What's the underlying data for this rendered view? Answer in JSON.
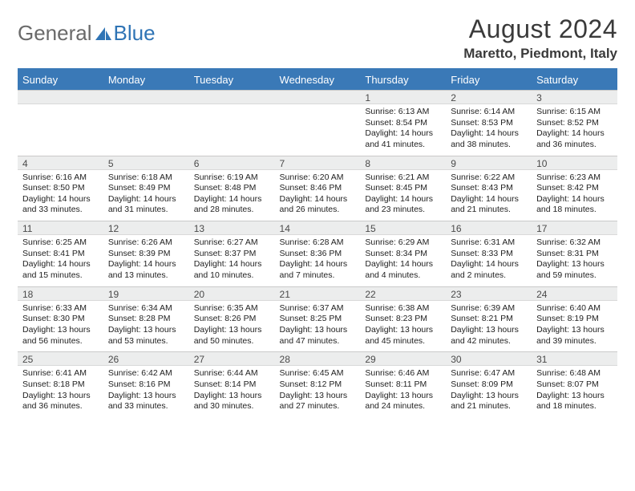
{
  "brand": {
    "part1": "General",
    "part2": "Blue"
  },
  "header": {
    "title": "August 2024",
    "location": "Maretto, Piedmont, Italy"
  },
  "colors": {
    "header_bg": "#3a79b7",
    "header_text": "#ffffff",
    "daynum_bg": "#eceded",
    "border": "#c9c9c9",
    "text": "#222222",
    "brand_gray": "#6a6a6a",
    "brand_blue": "#2f74b5"
  },
  "daysOfWeek": [
    "Sunday",
    "Monday",
    "Tuesday",
    "Wednesday",
    "Thursday",
    "Friday",
    "Saturday"
  ],
  "weeks": [
    [
      {
        "num": "",
        "sunrise": "",
        "sunset": "",
        "daylight": ""
      },
      {
        "num": "",
        "sunrise": "",
        "sunset": "",
        "daylight": ""
      },
      {
        "num": "",
        "sunrise": "",
        "sunset": "",
        "daylight": ""
      },
      {
        "num": "",
        "sunrise": "",
        "sunset": "",
        "daylight": ""
      },
      {
        "num": "1",
        "sunrise": "Sunrise: 6:13 AM",
        "sunset": "Sunset: 8:54 PM",
        "daylight": "Daylight: 14 hours and 41 minutes."
      },
      {
        "num": "2",
        "sunrise": "Sunrise: 6:14 AM",
        "sunset": "Sunset: 8:53 PM",
        "daylight": "Daylight: 14 hours and 38 minutes."
      },
      {
        "num": "3",
        "sunrise": "Sunrise: 6:15 AM",
        "sunset": "Sunset: 8:52 PM",
        "daylight": "Daylight: 14 hours and 36 minutes."
      }
    ],
    [
      {
        "num": "4",
        "sunrise": "Sunrise: 6:16 AM",
        "sunset": "Sunset: 8:50 PM",
        "daylight": "Daylight: 14 hours and 33 minutes."
      },
      {
        "num": "5",
        "sunrise": "Sunrise: 6:18 AM",
        "sunset": "Sunset: 8:49 PM",
        "daylight": "Daylight: 14 hours and 31 minutes."
      },
      {
        "num": "6",
        "sunrise": "Sunrise: 6:19 AM",
        "sunset": "Sunset: 8:48 PM",
        "daylight": "Daylight: 14 hours and 28 minutes."
      },
      {
        "num": "7",
        "sunrise": "Sunrise: 6:20 AM",
        "sunset": "Sunset: 8:46 PM",
        "daylight": "Daylight: 14 hours and 26 minutes."
      },
      {
        "num": "8",
        "sunrise": "Sunrise: 6:21 AM",
        "sunset": "Sunset: 8:45 PM",
        "daylight": "Daylight: 14 hours and 23 minutes."
      },
      {
        "num": "9",
        "sunrise": "Sunrise: 6:22 AM",
        "sunset": "Sunset: 8:43 PM",
        "daylight": "Daylight: 14 hours and 21 minutes."
      },
      {
        "num": "10",
        "sunrise": "Sunrise: 6:23 AM",
        "sunset": "Sunset: 8:42 PM",
        "daylight": "Daylight: 14 hours and 18 minutes."
      }
    ],
    [
      {
        "num": "11",
        "sunrise": "Sunrise: 6:25 AM",
        "sunset": "Sunset: 8:41 PM",
        "daylight": "Daylight: 14 hours and 15 minutes."
      },
      {
        "num": "12",
        "sunrise": "Sunrise: 6:26 AM",
        "sunset": "Sunset: 8:39 PM",
        "daylight": "Daylight: 14 hours and 13 minutes."
      },
      {
        "num": "13",
        "sunrise": "Sunrise: 6:27 AM",
        "sunset": "Sunset: 8:37 PM",
        "daylight": "Daylight: 14 hours and 10 minutes."
      },
      {
        "num": "14",
        "sunrise": "Sunrise: 6:28 AM",
        "sunset": "Sunset: 8:36 PM",
        "daylight": "Daylight: 14 hours and 7 minutes."
      },
      {
        "num": "15",
        "sunrise": "Sunrise: 6:29 AM",
        "sunset": "Sunset: 8:34 PM",
        "daylight": "Daylight: 14 hours and 4 minutes."
      },
      {
        "num": "16",
        "sunrise": "Sunrise: 6:31 AM",
        "sunset": "Sunset: 8:33 PM",
        "daylight": "Daylight: 14 hours and 2 minutes."
      },
      {
        "num": "17",
        "sunrise": "Sunrise: 6:32 AM",
        "sunset": "Sunset: 8:31 PM",
        "daylight": "Daylight: 13 hours and 59 minutes."
      }
    ],
    [
      {
        "num": "18",
        "sunrise": "Sunrise: 6:33 AM",
        "sunset": "Sunset: 8:30 PM",
        "daylight": "Daylight: 13 hours and 56 minutes."
      },
      {
        "num": "19",
        "sunrise": "Sunrise: 6:34 AM",
        "sunset": "Sunset: 8:28 PM",
        "daylight": "Daylight: 13 hours and 53 minutes."
      },
      {
        "num": "20",
        "sunrise": "Sunrise: 6:35 AM",
        "sunset": "Sunset: 8:26 PM",
        "daylight": "Daylight: 13 hours and 50 minutes."
      },
      {
        "num": "21",
        "sunrise": "Sunrise: 6:37 AM",
        "sunset": "Sunset: 8:25 PM",
        "daylight": "Daylight: 13 hours and 47 minutes."
      },
      {
        "num": "22",
        "sunrise": "Sunrise: 6:38 AM",
        "sunset": "Sunset: 8:23 PM",
        "daylight": "Daylight: 13 hours and 45 minutes."
      },
      {
        "num": "23",
        "sunrise": "Sunrise: 6:39 AM",
        "sunset": "Sunset: 8:21 PM",
        "daylight": "Daylight: 13 hours and 42 minutes."
      },
      {
        "num": "24",
        "sunrise": "Sunrise: 6:40 AM",
        "sunset": "Sunset: 8:19 PM",
        "daylight": "Daylight: 13 hours and 39 minutes."
      }
    ],
    [
      {
        "num": "25",
        "sunrise": "Sunrise: 6:41 AM",
        "sunset": "Sunset: 8:18 PM",
        "daylight": "Daylight: 13 hours and 36 minutes."
      },
      {
        "num": "26",
        "sunrise": "Sunrise: 6:42 AM",
        "sunset": "Sunset: 8:16 PM",
        "daylight": "Daylight: 13 hours and 33 minutes."
      },
      {
        "num": "27",
        "sunrise": "Sunrise: 6:44 AM",
        "sunset": "Sunset: 8:14 PM",
        "daylight": "Daylight: 13 hours and 30 minutes."
      },
      {
        "num": "28",
        "sunrise": "Sunrise: 6:45 AM",
        "sunset": "Sunset: 8:12 PM",
        "daylight": "Daylight: 13 hours and 27 minutes."
      },
      {
        "num": "29",
        "sunrise": "Sunrise: 6:46 AM",
        "sunset": "Sunset: 8:11 PM",
        "daylight": "Daylight: 13 hours and 24 minutes."
      },
      {
        "num": "30",
        "sunrise": "Sunrise: 6:47 AM",
        "sunset": "Sunset: 8:09 PM",
        "daylight": "Daylight: 13 hours and 21 minutes."
      },
      {
        "num": "31",
        "sunrise": "Sunrise: 6:48 AM",
        "sunset": "Sunset: 8:07 PM",
        "daylight": "Daylight: 13 hours and 18 minutes."
      }
    ]
  ]
}
